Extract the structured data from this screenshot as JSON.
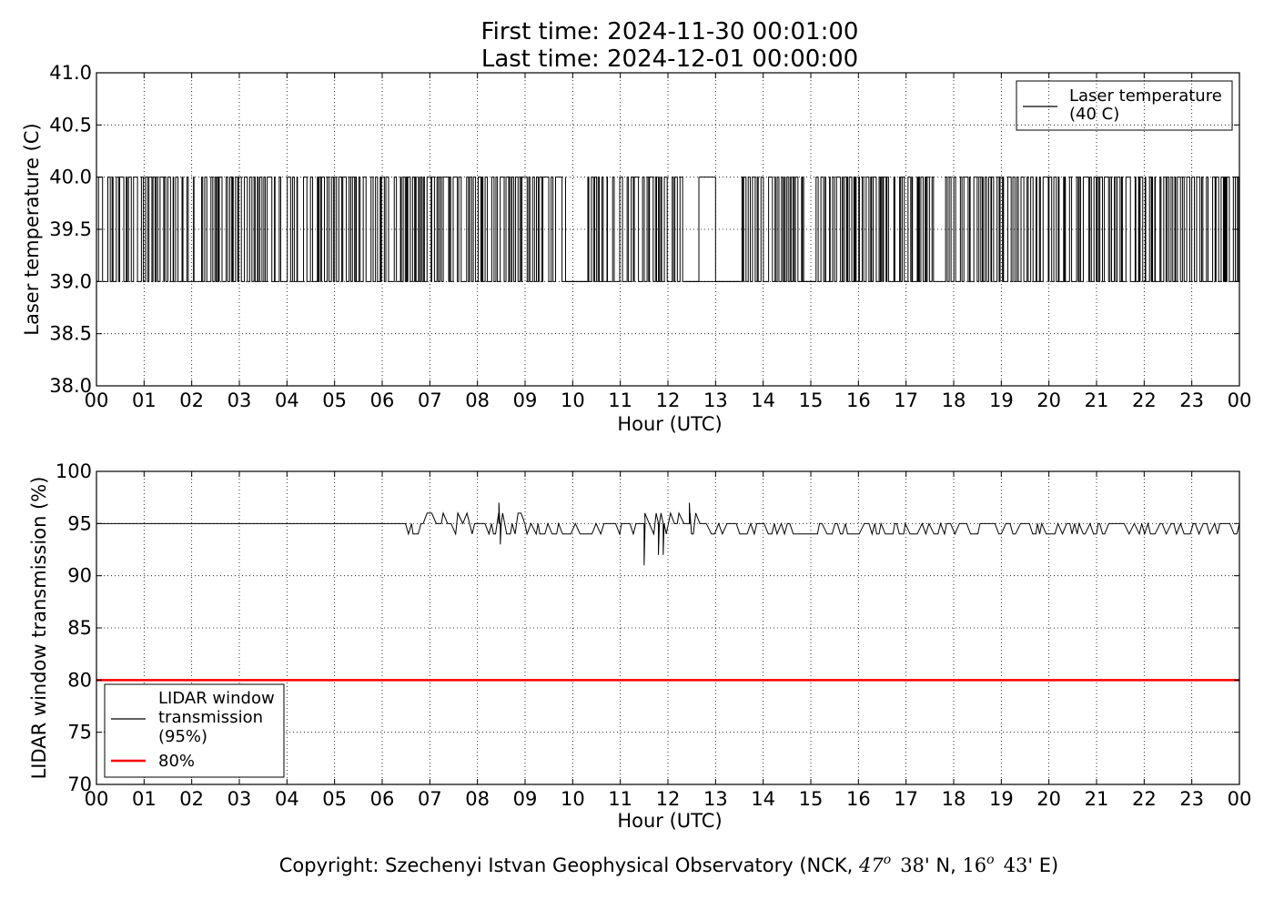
{
  "title_line1": "First time: 2024-11-30 00:01:00",
  "title_line2": "Last time: 2024-12-01 00:00:00",
  "copyright": {
    "prefix": "Copyright: Szechenyi Istvan Geophysical Observatory (NCK, ",
    "lat_deg": "47",
    "lat_deg_sup": "o",
    "lat_min": "38",
    "lat_suffix": "' N, ",
    "lon_deg": "16",
    "lon_deg_sup": "o",
    "lon_min": "43",
    "lon_suffix": "' E)"
  },
  "chart_data": [
    {
      "type": "line",
      "xlabel": "Hour (UTC)",
      "ylabel": "Laser temperature (C)",
      "x_ticks": [
        "00",
        "01",
        "02",
        "03",
        "04",
        "05",
        "06",
        "07",
        "08",
        "09",
        "10",
        "11",
        "12",
        "13",
        "14",
        "15",
        "16",
        "17",
        "18",
        "19",
        "20",
        "21",
        "22",
        "23",
        "00"
      ],
      "xlim_hours": [
        0,
        24
      ],
      "ylim": [
        38.0,
        41.0
      ],
      "y_ticks": [
        "38.0",
        "38.5",
        "39.0",
        "39.5",
        "40.0",
        "40.5",
        "41.0"
      ],
      "grid": true,
      "legend_position": "top-right",
      "series": [
        {
          "name": "Laser temperature (40 C)",
          "legend_lines": [
            "Laser temperature",
            "(40 C)"
          ],
          "color": "#000000",
          "description_values": [
            39.0,
            40.0
          ],
          "dense_toggle_segments_hours": [
            [
              0.0,
              9.85
            ],
            [
              10.3,
              12.35
            ],
            [
              13.5,
              14.85
            ],
            [
              15.1,
              24.0
            ]
          ],
          "steady_intervals_hours": [
            {
              "x": [
                9.85,
                10.3
              ],
              "y": 39.0
            },
            {
              "x": [
                12.35,
                12.65
              ],
              "y": 39.0
            },
            {
              "x": [
                12.65,
                13.0
              ],
              "y": 40.0
            },
            {
              "x": [
                13.0,
                13.5
              ],
              "y": 39.0
            },
            {
              "x": [
                14.85,
                15.1
              ],
              "y": 39.0
            }
          ]
        }
      ]
    },
    {
      "type": "line",
      "xlabel": "Hour (UTC)",
      "ylabel": "LIDAR window transmission (%)",
      "x_ticks": [
        "00",
        "01",
        "02",
        "03",
        "04",
        "05",
        "06",
        "07",
        "08",
        "09",
        "10",
        "11",
        "12",
        "13",
        "14",
        "15",
        "16",
        "17",
        "18",
        "19",
        "20",
        "21",
        "22",
        "23",
        "00"
      ],
      "xlim_hours": [
        0,
        24
      ],
      "ylim": [
        70,
        100
      ],
      "y_ticks": [
        "70",
        "75",
        "80",
        "85",
        "90",
        "95",
        "100"
      ],
      "grid": true,
      "legend_position": "lower-left",
      "series": [
        {
          "name": "LIDAR window transmission (95%)",
          "legend_lines": [
            "LIDAR window",
            "transmission",
            "(95%)"
          ],
          "color": "#000000",
          "baseline": 95,
          "flat_until_hour": 6.3,
          "notable_points": [
            {
              "x": 8.45,
              "y": 97
            },
            {
              "x": 8.48,
              "y": 93
            },
            {
              "x": 11.5,
              "y": 91
            },
            {
              "x": 11.8,
              "y": 92
            },
            {
              "x": 11.9,
              "y": 92
            },
            {
              "x": 12.45,
              "y": 97
            }
          ]
        },
        {
          "name": "80%",
          "legend_lines": [
            "80%"
          ],
          "color": "#ff0000",
          "values_constant": 80
        }
      ]
    }
  ]
}
